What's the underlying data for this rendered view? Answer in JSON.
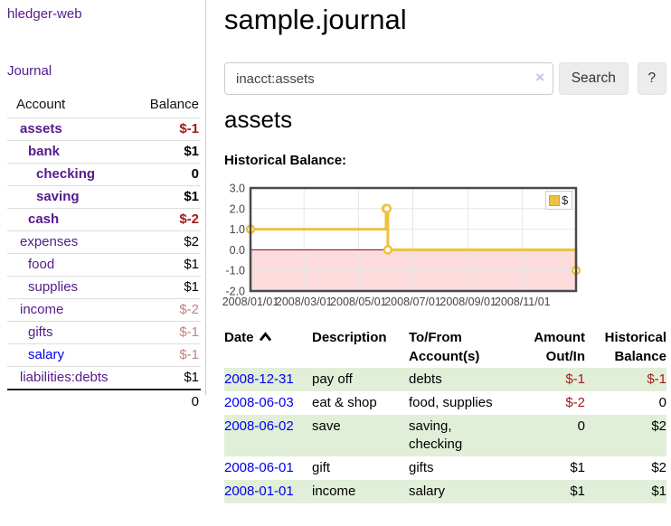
{
  "sidebar": {
    "app_title": "hledger-web",
    "nav": [
      {
        "label": "Journal"
      }
    ],
    "accounts_table": {
      "headers": {
        "account": "Account",
        "balance": "Balance"
      },
      "rows": [
        {
          "account": "assets",
          "balance": "$-1",
          "level": 1
        },
        {
          "account": "bank",
          "balance": "$1",
          "level": 2
        },
        {
          "account": "checking",
          "balance": "0",
          "level": 3
        },
        {
          "account": "saving",
          "balance": "$1",
          "level": 3
        },
        {
          "account": "cash",
          "balance": "$-2",
          "level": 2
        },
        {
          "account": "expenses",
          "balance": "$2",
          "level": 1
        },
        {
          "account": "food",
          "balance": "$1",
          "level": 2
        },
        {
          "account": "supplies",
          "balance": "$1",
          "level": 2
        },
        {
          "account": "income",
          "balance": "$-2",
          "level": 1
        },
        {
          "account": "gifts",
          "balance": "$-1",
          "level": 2
        },
        {
          "account": "salary",
          "balance": "$-1",
          "level": 2
        },
        {
          "account": "liabilities:debts",
          "balance": "$1",
          "level": 1
        }
      ],
      "total": "0"
    }
  },
  "main": {
    "title": "sample.journal",
    "search": {
      "value": "inacct:assets",
      "clear_icon": "×",
      "button_label": "Search",
      "help_label": "?"
    },
    "account_heading": "assets",
    "chart_label": "Historical Balance:"
  },
  "chart_data": {
    "type": "line",
    "style": "step",
    "title": "Historical Balance",
    "x_range": [
      0,
      365
    ],
    "y_range": [
      -2,
      3
    ],
    "x_unit": "days from 2008-01-01",
    "x_ticks": [
      {
        "v": 0,
        "label": "2008/01/01"
      },
      {
        "v": 60,
        "label": "2008/03/01"
      },
      {
        "v": 121,
        "label": "2008/05/01"
      },
      {
        "v": 182,
        "label": "2008/07/01"
      },
      {
        "v": 244,
        "label": "2008/09/01"
      },
      {
        "v": 305,
        "label": "2008/11/01"
      }
    ],
    "y_ticks": [
      {
        "v": 3,
        "label": "3.0"
      },
      {
        "v": 2,
        "label": "2.0"
      },
      {
        "v": 1,
        "label": "1.0"
      },
      {
        "v": 0,
        "label": "0.0"
      },
      {
        "v": -1,
        "label": "-1.0"
      },
      {
        "v": -2,
        "label": "-2.0"
      }
    ],
    "series": [
      {
        "name": "$",
        "color": "#edc240",
        "data": [
          {
            "date": "2008-01-01",
            "day": 0,
            "value": 1
          },
          {
            "date": "2008-06-01",
            "day": 152,
            "value": 2
          },
          {
            "date": "2008-06-02",
            "day": 153,
            "value": 2
          },
          {
            "date": "2008-06-03",
            "day": 154,
            "value": 0
          },
          {
            "date": "2008-12-31",
            "day": 365,
            "value": -1
          }
        ]
      }
    ],
    "negative_region": {
      "below": 0,
      "fill": "#fbdbdb",
      "line": "#8b0000"
    },
    "legend_position": "top-right",
    "grid": true
  },
  "register": {
    "headers": {
      "date": "Date",
      "description": "Description",
      "accounts": "To/From Account(s)",
      "amount": "Amount Out/In",
      "balance": "Historical Balance"
    },
    "rows": [
      {
        "date": "2008-12-31",
        "description": "pay off",
        "accounts": "debts",
        "amount": "$-1",
        "balance": "$-1"
      },
      {
        "date": "2008-06-03",
        "description": "eat & shop",
        "accounts": "food, supplies",
        "amount": "$-2",
        "balance": "0"
      },
      {
        "date": "2008-06-02",
        "description": "save",
        "accounts": "saving, checking",
        "amount": "0",
        "balance": "$2"
      },
      {
        "date": "2008-06-01",
        "description": "gift",
        "accounts": "gifts",
        "amount": "$1",
        "balance": "$2"
      },
      {
        "date": "2008-01-01",
        "description": "income",
        "accounts": "salary",
        "amount": "$1",
        "balance": "$1"
      }
    ]
  },
  "colors": {
    "link_purple": "#551a8b",
    "link_blue": "#0000ee",
    "negative_strong": "#a01c1c",
    "negative_muted": "#c08383",
    "row_green": "#e1efd8",
    "series_gold": "#edc240",
    "negative_zone_pink": "#fbdbdb",
    "zero_line_red": "#8b0000",
    "chart_border": "#4a4a4a"
  }
}
